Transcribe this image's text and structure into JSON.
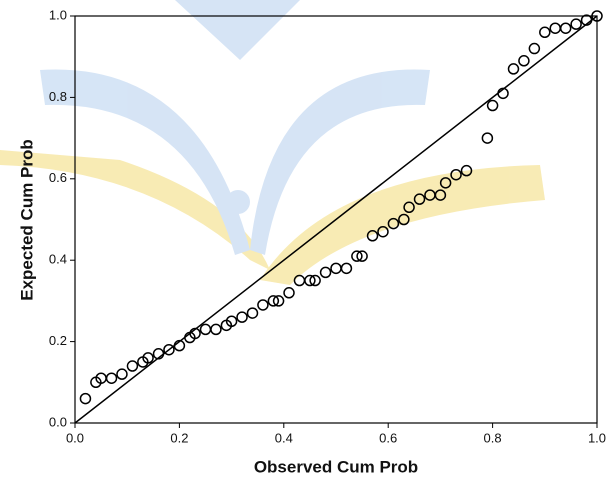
{
  "chart_data": {
    "type": "scatter",
    "x_label": "Observed Cum Prob",
    "y_label": "Expected Cum Prob",
    "x": [
      0.02,
      0.04,
      0.05,
      0.07,
      0.09,
      0.11,
      0.13,
      0.14,
      0.16,
      0.18,
      0.2,
      0.22,
      0.23,
      0.25,
      0.27,
      0.29,
      0.3,
      0.32,
      0.34,
      0.36,
      0.38,
      0.39,
      0.41,
      0.43,
      0.45,
      0.46,
      0.48,
      0.5,
      0.52,
      0.54,
      0.55,
      0.57,
      0.59,
      0.61,
      0.63,
      0.64,
      0.66,
      0.68,
      0.7,
      0.71,
      0.73,
      0.75,
      0.79,
      0.8,
      0.82,
      0.84,
      0.86,
      0.88,
      0.9,
      0.92,
      0.94,
      0.96,
      0.98,
      1.0
    ],
    "values": [
      0.06,
      0.1,
      0.11,
      0.11,
      0.12,
      0.14,
      0.15,
      0.16,
      0.17,
      0.18,
      0.19,
      0.21,
      0.22,
      0.23,
      0.23,
      0.24,
      0.25,
      0.26,
      0.27,
      0.29,
      0.3,
      0.3,
      0.32,
      0.35,
      0.35,
      0.35,
      0.37,
      0.38,
      0.38,
      0.41,
      0.41,
      0.46,
      0.47,
      0.49,
      0.5,
      0.53,
      0.55,
      0.56,
      0.56,
      0.59,
      0.61,
      0.62,
      0.7,
      0.78,
      0.81,
      0.87,
      0.89,
      0.92,
      0.96,
      0.97,
      0.97,
      0.98,
      0.99,
      1.0
    ],
    "reference_line": {
      "x": [
        0,
        1
      ],
      "y": [
        0,
        1
      ]
    },
    "xlim": [
      0,
      1
    ],
    "ylim": [
      0,
      1
    ],
    "xticks": [
      {
        "value": 0,
        "label": "0.0"
      },
      0.2,
      0.4,
      0.6,
      0.8,
      {
        "value": 1,
        "label": "1.0"
      }
    ],
    "yticks": [
      {
        "value": 0,
        "label": "0.0"
      },
      0.2,
      0.4,
      0.6,
      0.8,
      {
        "value": 1,
        "label": "1.0"
      }
    ],
    "grid": false
  }
}
